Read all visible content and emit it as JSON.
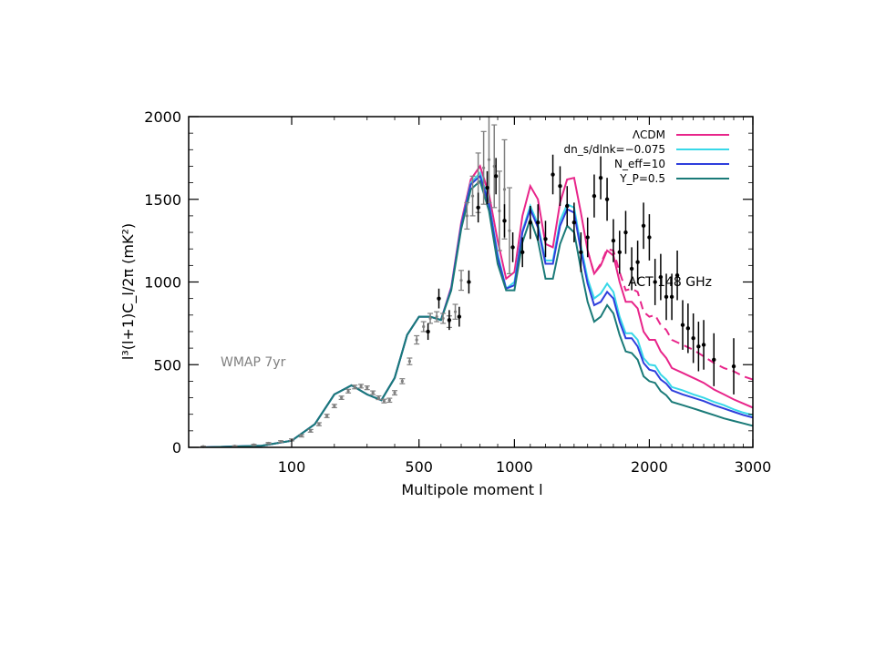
{
  "chart_data": {
    "type": "line",
    "title": "",
    "xlabel": "Multipole moment l",
    "ylabel": "l³(l+1)C_l/2π (mK²)",
    "xlim": [
      0,
      3000
    ],
    "ylim": [
      0,
      2000
    ],
    "x_scale": "sqrt",
    "x_ticks": [
      100,
      500,
      1000,
      2000,
      3000
    ],
    "y_ticks": [
      0,
      500,
      1000,
      1500,
      2000
    ],
    "grid": false,
    "legend_position": "top-right",
    "series": [
      {
        "name": "ΛCDM",
        "color": "#e8258a",
        "style": "solid",
        "x": [
          2,
          50,
          100,
          150,
          200,
          250,
          300,
          350,
          400,
          450,
          500,
          550,
          600,
          650,
          700,
          750,
          800,
          850,
          900,
          950,
          1000,
          1050,
          1100,
          1150,
          1200,
          1250,
          1300,
          1350,
          1400,
          1450,
          1500,
          1550,
          1600,
          1650,
          1700,
          1750,
          1800,
          1850,
          1900,
          1950,
          2000,
          2050,
          2100,
          2150,
          2200,
          2300,
          2400,
          2500,
          2600,
          2700,
          2800,
          2900,
          3000
        ],
        "y": [
          0,
          10,
          40,
          140,
          320,
          375,
          320,
          285,
          420,
          680,
          790,
          790,
          770,
          970,
          1360,
          1620,
          1700,
          1530,
          1250,
          1020,
          1060,
          1400,
          1580,
          1500,
          1230,
          1210,
          1480,
          1620,
          1630,
          1420,
          1190,
          1050,
          1100,
          1190,
          1160,
          1000,
          880,
          880,
          840,
          700,
          650,
          650,
          580,
          540,
          480,
          450,
          420,
          390,
          350,
          320,
          290,
          265,
          240
        ]
      },
      {
        "name": "dn_s/dlnk=−0.075",
        "color": "#38d8e8",
        "style": "solid",
        "x": [
          2,
          50,
          100,
          150,
          200,
          250,
          300,
          350,
          400,
          450,
          500,
          550,
          600,
          650,
          700,
          750,
          800,
          850,
          900,
          950,
          1000,
          1050,
          1100,
          1150,
          1200,
          1250,
          1300,
          1350,
          1400,
          1450,
          1500,
          1550,
          1600,
          1650,
          1700,
          1750,
          1800,
          1850,
          1900,
          1950,
          2000,
          2050,
          2100,
          2150,
          2200,
          2300,
          2400,
          2500,
          2600,
          2700,
          2800,
          2900,
          3000
        ],
        "y": [
          0,
          10,
          40,
          140,
          320,
          375,
          320,
          285,
          420,
          680,
          790,
          790,
          770,
          960,
          1340,
          1600,
          1660,
          1480,
          1170,
          960,
          1000,
          1310,
          1460,
          1350,
          1130,
          1130,
          1370,
          1470,
          1450,
          1220,
          1020,
          900,
          930,
          990,
          940,
          790,
          690,
          690,
          650,
          540,
          500,
          495,
          440,
          410,
          365,
          345,
          320,
          300,
          275,
          255,
          230,
          210,
          195
        ]
      },
      {
        "name": "N_eff=10",
        "color": "#2e3edc",
        "style": "solid",
        "x": [
          2,
          50,
          100,
          150,
          200,
          250,
          300,
          350,
          400,
          450,
          500,
          550,
          600,
          650,
          700,
          750,
          800,
          850,
          900,
          950,
          1000,
          1050,
          1100,
          1150,
          1200,
          1250,
          1300,
          1350,
          1400,
          1450,
          1500,
          1550,
          1600,
          1650,
          1700,
          1750,
          1800,
          1850,
          1900,
          1950,
          2000,
          2050,
          2100,
          2150,
          2200,
          2300,
          2400,
          2500,
          2600,
          2700,
          2800,
          2900,
          3000
        ],
        "y": [
          0,
          10,
          40,
          140,
          320,
          375,
          320,
          285,
          420,
          680,
          790,
          790,
          770,
          960,
          1340,
          1590,
          1640,
          1470,
          1150,
          960,
          980,
          1300,
          1440,
          1330,
          1110,
          1110,
          1340,
          1440,
          1420,
          1190,
          990,
          860,
          880,
          940,
          900,
          760,
          660,
          660,
          610,
          510,
          470,
          460,
          410,
          385,
          345,
          320,
          300,
          280,
          255,
          235,
          215,
          195,
          180
        ]
      },
      {
        "name": "Y_P=0.5",
        "color": "#1a7a78",
        "style": "solid",
        "x": [
          2,
          50,
          100,
          150,
          200,
          250,
          300,
          350,
          400,
          450,
          500,
          550,
          600,
          650,
          700,
          750,
          800,
          850,
          900,
          950,
          1000,
          1050,
          1100,
          1150,
          1200,
          1250,
          1300,
          1350,
          1400,
          1450,
          1500,
          1550,
          1600,
          1650,
          1700,
          1750,
          1800,
          1850,
          1900,
          1950,
          2000,
          2050,
          2100,
          2150,
          2200,
          2300,
          2400,
          2500,
          2600,
          2700,
          2800,
          2900,
          3000
        ],
        "y": [
          0,
          10,
          40,
          140,
          320,
          375,
          320,
          285,
          420,
          680,
          790,
          790,
          770,
          950,
          1320,
          1560,
          1610,
          1430,
          1110,
          950,
          950,
          1240,
          1380,
          1250,
          1020,
          1020,
          1230,
          1340,
          1300,
          1080,
          880,
          760,
          790,
          860,
          810,
          680,
          580,
          570,
          530,
          430,
          400,
          390,
          340,
          315,
          275,
          255,
          235,
          215,
          195,
          175,
          160,
          145,
          130
        ]
      },
      {
        "name": "",
        "color": "#e8258a",
        "style": "dashed",
        "x": [
          1500,
          1550,
          1600,
          1650,
          1700,
          1750,
          1800,
          1850,
          1900,
          1950,
          2000,
          2050,
          2100,
          2150,
          2200,
          2300,
          2400,
          2500,
          2600,
          2700,
          2800,
          2900,
          3000
        ],
        "y": [
          1190,
          1050,
          1110,
          1200,
          1190,
          1060,
          950,
          960,
          940,
          820,
          790,
          800,
          740,
          710,
          650,
          620,
          590,
          550,
          510,
          480,
          460,
          430,
          410
        ]
      }
    ],
    "data_points": [
      {
        "name": "WMAP 7yr",
        "color": "#808080",
        "x": [
          2,
          20,
          40,
          60,
          80,
          100,
          120,
          140,
          160,
          180,
          200,
          220,
          240,
          260,
          280,
          300,
          320,
          340,
          360,
          380,
          400,
          430,
          460,
          490,
          520,
          550,
          580,
          610,
          640,
          670,
          700,
          730,
          760,
          790,
          820,
          850,
          880,
          910,
          940,
          970
        ],
        "y": [
          5,
          8,
          15,
          25,
          35,
          45,
          70,
          100,
          140,
          190,
          250,
          300,
          340,
          365,
          370,
          360,
          330,
          300,
          280,
          285,
          330,
          400,
          520,
          650,
          730,
          780,
          790,
          780,
          760,
          820,
          1010,
          1400,
          1520,
          1600,
          1690,
          1740,
          1700,
          1430,
          1560,
          1310
        ],
        "err": [
          2,
          2,
          3,
          4,
          5,
          6,
          7,
          8,
          9,
          10,
          10,
          10,
          11,
          11,
          11,
          11,
          11,
          11,
          11,
          12,
          13,
          15,
          20,
          25,
          30,
          30,
          30,
          30,
          35,
          45,
          60,
          80,
          120,
          180,
          220,
          260,
          250,
          240,
          300,
          260
        ]
      },
      {
        "name": "ACT 148 GHz",
        "color": "#000000",
        "x": [
          540,
          590,
          640,
          690,
          740,
          790,
          840,
          890,
          940,
          990,
          1050,
          1100,
          1150,
          1200,
          1250,
          1300,
          1350,
          1400,
          1450,
          1500,
          1550,
          1600,
          1650,
          1700,
          1750,
          1800,
          1850,
          1900,
          1950,
          2000,
          2050,
          2100,
          2150,
          2200,
          2250,
          2300,
          2350,
          2400,
          2450,
          2500,
          2600,
          2800
        ],
        "y": [
          700,
          900,
          770,
          790,
          1000,
          1450,
          1570,
          1640,
          1370,
          1210,
          1180,
          1360,
          1360,
          1260,
          1650,
          1580,
          1460,
          1360,
          1180,
          1270,
          1520,
          1630,
          1500,
          1250,
          1180,
          1300,
          1080,
          1120,
          1340,
          1270,
          1000,
          1030,
          910,
          910,
          1040,
          740,
          720,
          660,
          610,
          620,
          530,
          490
        ],
        "err": [
          50,
          60,
          60,
          60,
          70,
          90,
          100,
          110,
          100,
          90,
          90,
          100,
          110,
          110,
          120,
          120,
          120,
          120,
          120,
          120,
          130,
          130,
          130,
          130,
          130,
          130,
          130,
          130,
          140,
          140,
          140,
          140,
          140,
          140,
          150,
          150,
          150,
          150,
          150,
          150,
          160,
          170
        ]
      }
    ],
    "annotations": [
      {
        "text": "WMAP 7yr",
        "color": "#808080"
      },
      {
        "text": "ACT 148 GHz",
        "color": "#000000"
      }
    ]
  }
}
